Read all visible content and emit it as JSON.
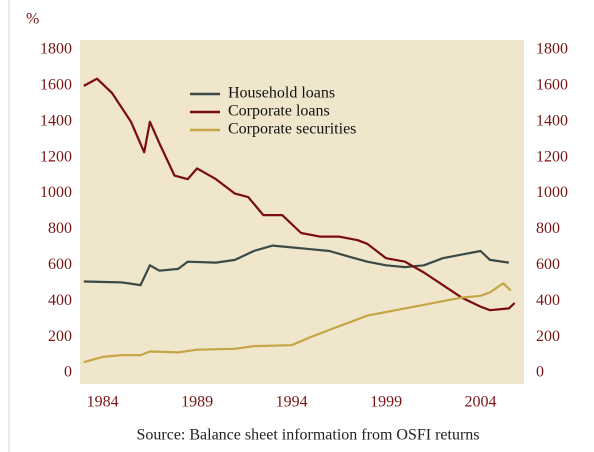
{
  "chart_data": {
    "type": "line",
    "y_unit_label": "%",
    "source": "Source: Balance sheet information from OSFI returns",
    "xlim": [
      1982.8,
      2006.3
    ],
    "xticks": [
      1984,
      1989,
      1994,
      1999,
      2004
    ],
    "ylim": [
      0,
      1800
    ],
    "yticks": [
      0,
      200,
      400,
      600,
      800,
      1000,
      1200,
      1400,
      1600,
      1800
    ],
    "y2lim": [
      0,
      1800
    ],
    "y2ticks": [
      0,
      200,
      400,
      600,
      800,
      1000,
      1200,
      1400,
      1600,
      1800
    ],
    "legend": "top",
    "background": "#efe6cc",
    "series": [
      {
        "name": "Household loans",
        "color": "#3c4a46",
        "x": [
          1983,
          1985,
          1986,
          1986.5,
          1987,
          1988,
          1988.5,
          1990,
          1991,
          1992,
          1993,
          1994,
          1995,
          1996,
          1997,
          1998,
          1999,
          2000,
          2001,
          2002,
          2003,
          2004,
          2004.5,
          2005.5
        ],
        "values": [
          510,
          505,
          490,
          600,
          570,
          580,
          620,
          615,
          630,
          680,
          710,
          700,
          690,
          680,
          650,
          620,
          600,
          590,
          600,
          640,
          660,
          680,
          630,
          615
        ]
      },
      {
        "name": "Corporate loans",
        "color": "#7a0c0e",
        "x": [
          1983,
          1983.7,
          1984.5,
          1985.5,
          1986.2,
          1986.5,
          1987,
          1987.8,
          1988.5,
          1989,
          1990,
          1991,
          1991.7,
          1992.5,
          1993.5,
          1994.5,
          1995.5,
          1996.5,
          1997.5,
          1998,
          1999,
          2000,
          2001,
          2002,
          2003,
          2004,
          2004.5,
          2005.5,
          2005.8
        ],
        "values": [
          1600,
          1640,
          1560,
          1400,
          1230,
          1400,
          1280,
          1100,
          1080,
          1140,
          1080,
          1000,
          980,
          880,
          880,
          780,
          760,
          760,
          740,
          720,
          640,
          620,
          560,
          490,
          420,
          370,
          350,
          360,
          390
        ]
      },
      {
        "name": "Corporate securities",
        "color": "#c6a545",
        "x": [
          1983,
          1984,
          1985,
          1986,
          1986.5,
          1988,
          1989,
          1991,
          1992,
          1994,
          1995,
          1996,
          1997,
          1998,
          1999,
          2000,
          2001,
          2002,
          2003,
          2004,
          2004.5,
          2005.2,
          2005.6
        ],
        "values": [
          60,
          90,
          100,
          100,
          120,
          115,
          130,
          135,
          150,
          155,
          200,
          240,
          280,
          320,
          340,
          360,
          380,
          400,
          420,
          430,
          450,
          500,
          460
        ]
      }
    ]
  }
}
